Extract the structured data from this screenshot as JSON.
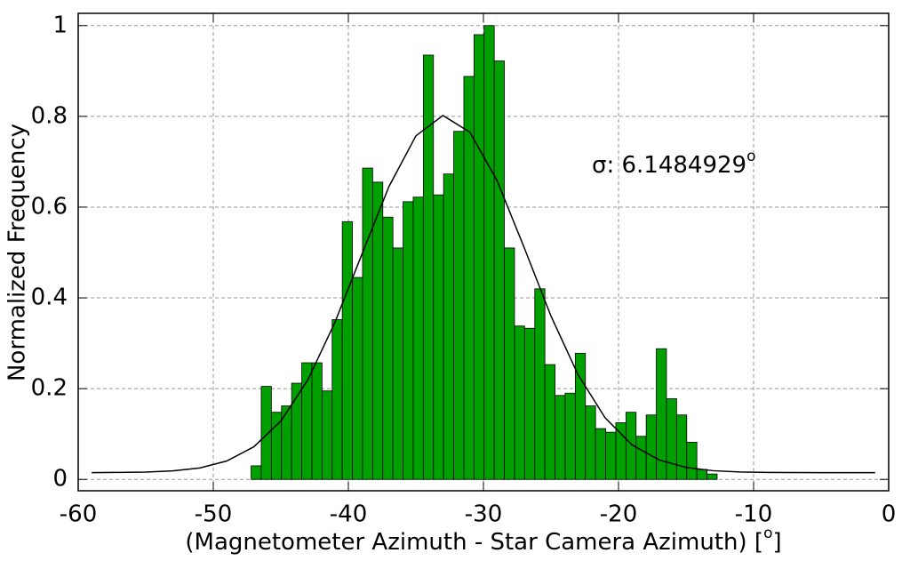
{
  "chart_data": {
    "type": "histogram",
    "xlabel": [
      "(Magnetometer Azimuth - Star Camera Azimuth) [",
      "o",
      "]"
    ],
    "ylabel": "Normalized Frequency",
    "annotation": [
      "σ: 6.1484929",
      "o"
    ],
    "bins": [
      -47.2,
      -46.45,
      -45.7,
      -44.95,
      -44.2,
      -43.45,
      -42.7,
      -41.95,
      -41.2,
      -40.45,
      -39.7,
      -38.95,
      -38.2,
      -37.45,
      -36.7,
      -35.95,
      -35.2,
      -34.45,
      -33.7,
      -32.95,
      -32.2,
      -31.45,
      -30.7,
      -29.95,
      -29.2,
      -28.45,
      -27.7,
      -26.95,
      -26.2,
      -25.45,
      -24.7,
      -23.95,
      -23.2,
      -22.45,
      -21.7,
      -20.95,
      -20.2,
      -19.45,
      -18.7,
      -17.95,
      -17.2,
      -16.45,
      -15.7,
      -14.95,
      -14.2,
      -13.45,
      -12.7
    ],
    "values": [
      0.03,
      0.205,
      0.148,
      0.162,
      0.212,
      0.257,
      0.257,
      0.195,
      0.352,
      0.568,
      0.445,
      0.686,
      0.655,
      0.578,
      0.51,
      0.612,
      0.622,
      0.935,
      0.627,
      0.673,
      0.767,
      0.888,
      0.98,
      1.0,
      0.922,
      0.51,
      0.338,
      0.333,
      0.42,
      0.253,
      0.185,
      0.19,
      0.278,
      0.162,
      0.112,
      0.104,
      0.125,
      0.148,
      0.095,
      0.142,
      0.288,
      0.178,
      0.142,
      0.082,
      0.022,
      0.012
    ],
    "color": "#00a000",
    "fit": {
      "color": "#000000",
      "x": [
        -59,
        -57,
        -55,
        -53,
        -51,
        -49,
        -47,
        -45,
        -43,
        -41,
        -39,
        -37,
        -35,
        -33,
        -31,
        -29,
        -27,
        -25,
        -23,
        -21,
        -19,
        -17,
        -15,
        -13,
        -11,
        -9,
        -7,
        -5,
        -3,
        -1
      ],
      "y": [
        0.015,
        0.0154,
        0.0162,
        0.0188,
        0.0253,
        0.0406,
        0.0718,
        0.1286,
        0.2193,
        0.3456,
        0.496,
        0.645,
        0.757,
        0.802,
        0.765,
        0.659,
        0.512,
        0.36,
        0.231,
        0.136,
        0.0762,
        0.0429,
        0.0264,
        0.0192,
        0.0164,
        0.0155,
        0.0151,
        0.015,
        0.015,
        0.015
      ]
    },
    "xlim": [
      -60,
      0
    ],
    "ylim": [
      -0.025,
      1.027
    ],
    "xticks": [
      -60,
      -50,
      -40,
      -30,
      -20,
      -10,
      0
    ],
    "yticks": [
      0,
      0.2,
      0.4,
      0.6,
      0.8,
      1
    ],
    "grid": true
  }
}
